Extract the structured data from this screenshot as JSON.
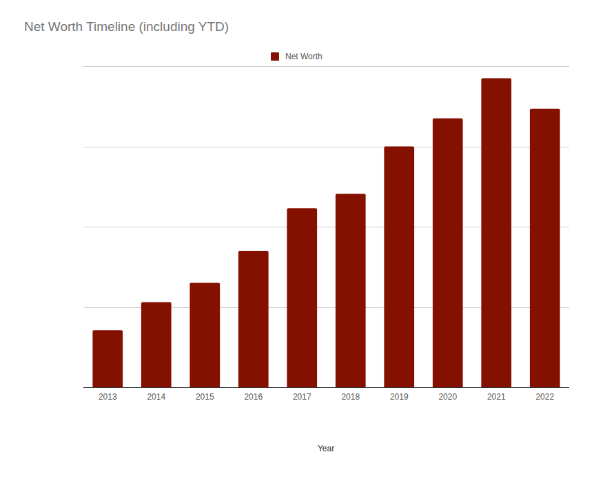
{
  "chart_data": {
    "type": "bar",
    "title": "Net Worth Timeline (including YTD)",
    "x_label": "Year",
    "categories": [
      "2013",
      "2014",
      "2015",
      "2016",
      "2017",
      "2018",
      "2019",
      "2020",
      "2021",
      "2022"
    ],
    "series": [
      {
        "name": "Net Worth",
        "color": "#841000",
        "values": [
          0.71,
          1.06,
          1.3,
          1.7,
          2.23,
          2.41,
          3.0,
          3.35,
          3.85,
          3.47
        ]
      }
    ],
    "ylim": [
      0,
      4
    ],
    "yticks": [
      0,
      1,
      2,
      3,
      4
    ],
    "grid": true,
    "legend": "top",
    "tick_labels": "x"
  }
}
